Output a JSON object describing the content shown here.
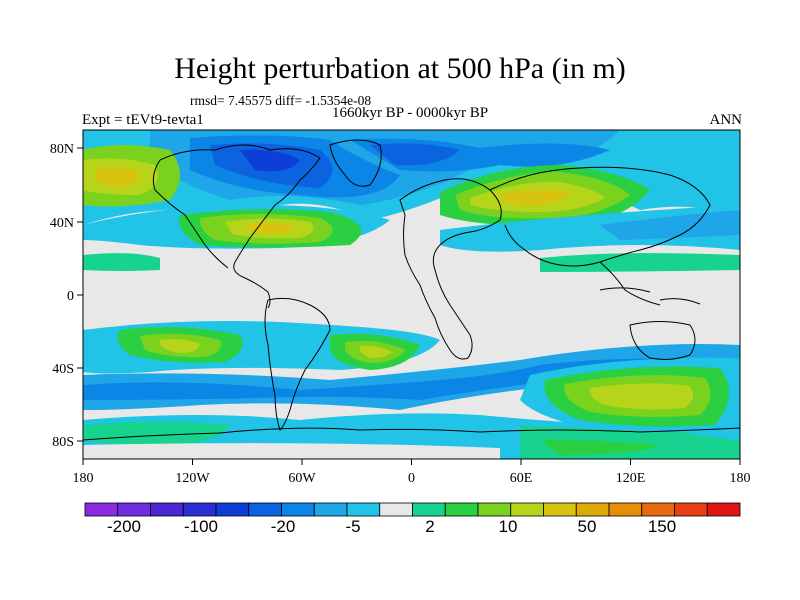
{
  "header": {
    "title": "Height perturbation at 500 hPa (in m)",
    "stats": "rmsd= 7.45575 diff= -1.5354e-08",
    "period": "1660kyr BP - 0000kyr BP",
    "experiment": "Expt = tEVt9-tevta1",
    "season": "ANN"
  },
  "map": {
    "x_ticks": [
      "180",
      "120W",
      "60W",
      "0",
      "60E",
      "120E",
      "180"
    ],
    "y_ticks": [
      "80N",
      "40N",
      "0",
      "40S",
      "80S"
    ],
    "lat_range": [
      -90,
      90
    ],
    "lon_range": [
      -180,
      180
    ]
  },
  "colorbar": {
    "colors": [
      "#8a2be2",
      "#6f2fe0",
      "#4a26d4",
      "#2b2dd6",
      "#0d3fd8",
      "#0b63e0",
      "#0c86e6",
      "#1ea6e8",
      "#21c3e6",
      "#e8e8e8",
      "#17d38f",
      "#2ad042",
      "#7ad21e",
      "#b6d41a",
      "#d8c310",
      "#dfa908",
      "#e68e08",
      "#e86a10",
      "#e84014",
      "#e01414"
    ],
    "labels": [
      "-200",
      "-100",
      "-20",
      "-5",
      "2",
      "10",
      "50",
      "150"
    ]
  },
  "colors": {
    "neutral": "#e8e8e8",
    "land_outline": "#000000"
  }
}
